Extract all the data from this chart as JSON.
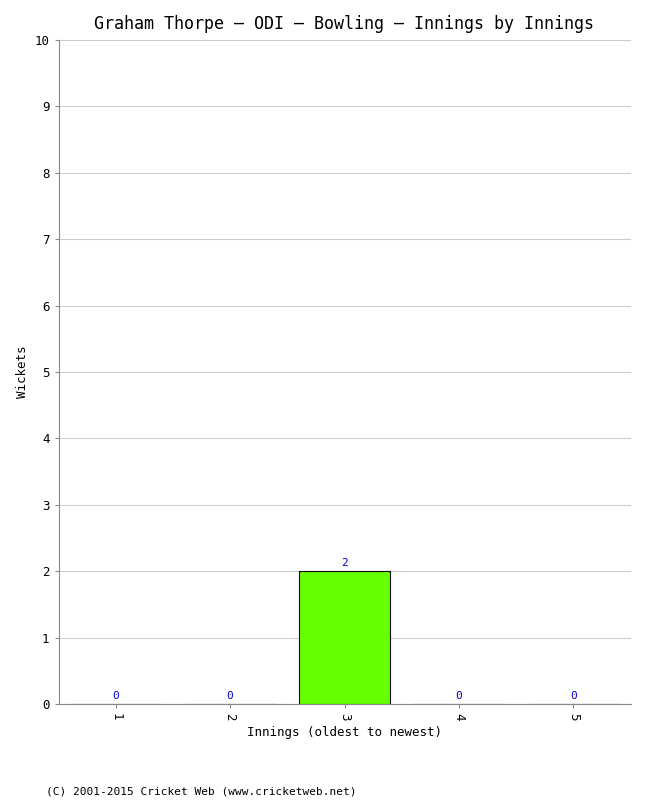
{
  "title": "Graham Thorpe – ODI – Bowling – Innings by Innings",
  "xlabel": "Innings (oldest to newest)",
  "ylabel": "Wickets",
  "categories": [
    1,
    2,
    3,
    4,
    5
  ],
  "values": [
    0,
    0,
    2,
    0,
    0
  ],
  "bar_color": "#66ff00",
  "ylim": [
    0,
    10
  ],
  "yticks": [
    0,
    1,
    2,
    3,
    4,
    5,
    6,
    7,
    8,
    9,
    10
  ],
  "background_color": "#ffffff",
  "grid_color": "#cccccc",
  "title_fontsize": 12,
  "axis_label_fontsize": 9,
  "tick_fontsize": 9,
  "annotation_fontsize": 8,
  "annotation_color": "#0000cc",
  "footer": "(C) 2001-2015 Cricket Web (www.cricketweb.net)",
  "footer_fontsize": 8,
  "footer_color": "#000000",
  "xlim": [
    0.5,
    5.5
  ]
}
